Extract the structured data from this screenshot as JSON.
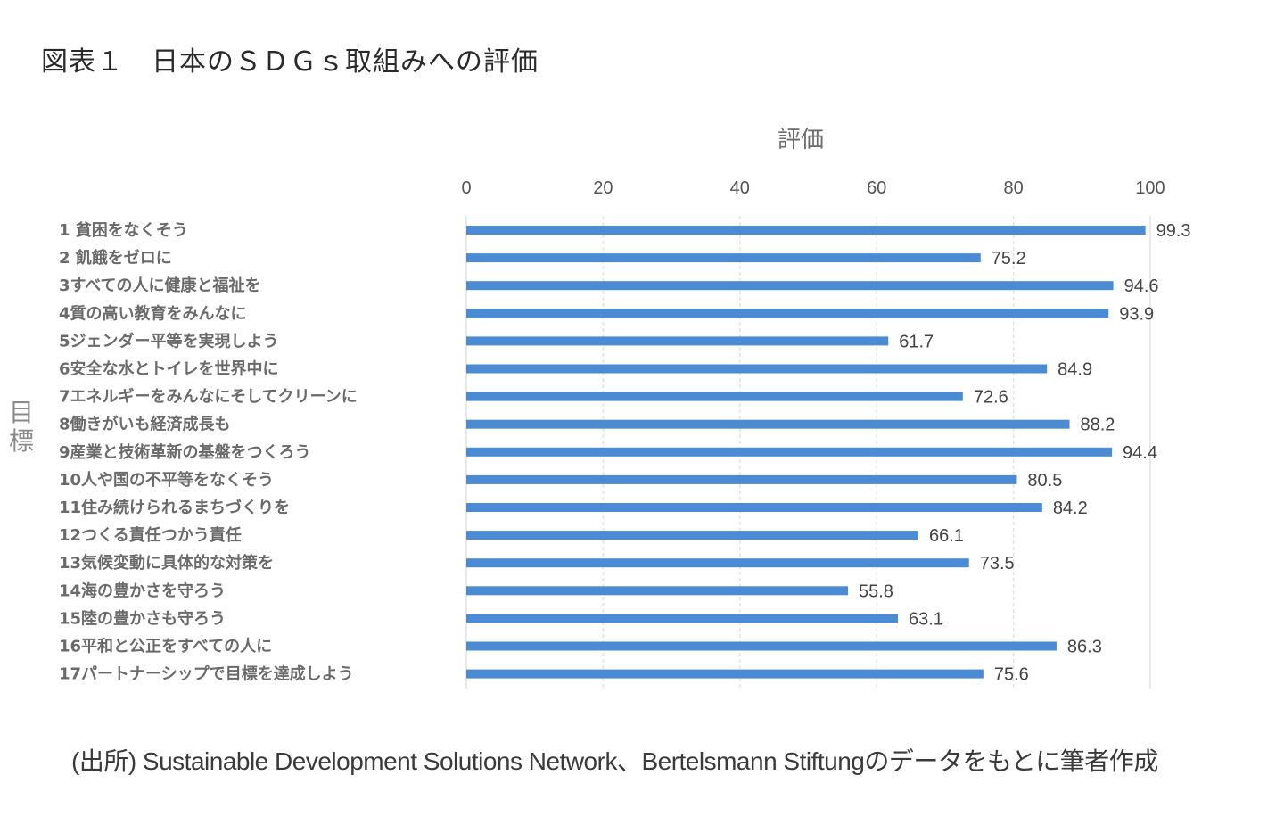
{
  "title": "図表１　日本のＳＤＧｓ取組みへの評価",
  "source": "(出所) Sustainable Development Solutions Network、Bertelsmann Stiftungのデータをもとに筆者作成",
  "chart_data": {
    "type": "bar",
    "orientation": "horizontal",
    "title": "図表１　日本のＳＤＧｓ取組みへの評価",
    "xlabel": "評価",
    "ylabel": "目標",
    "xlim": [
      0,
      100
    ],
    "xticks": [
      "0",
      "20",
      "40",
      "60",
      "80",
      "100"
    ],
    "x_axis_position": "top",
    "grid": true,
    "bar_color": "#4a8bd3",
    "categories": [
      "1 貧困をなくそう",
      "2 飢餓をゼロに",
      "3すべての人に健康と福祉を",
      "4質の高い教育をみんなに",
      "5ジェンダー平等を実現しよう",
      "6安全な水とトイレを世界中に",
      "7エネルギーをみんなにそしてクリーンに",
      "8働きがいも経済成長も",
      "9産業と技術革新の基盤をつくろう",
      "10人や国の不平等をなくそう",
      "11住み続けられるまちづくりを",
      "12つくる責任つかう責任",
      "13気候変動に具体的な対策を",
      "14海の豊かさを守ろう",
      "15陸の豊かさも守ろう",
      "16平和と公正をすべての人に",
      "17パートナーシップで目標を達成しよう"
    ],
    "values": [
      99.3,
      75.2,
      94.6,
      93.9,
      61.7,
      84.9,
      72.6,
      88.2,
      94.4,
      80.5,
      84.2,
      66.1,
      73.5,
      55.8,
      63.1,
      86.3,
      75.6
    ],
    "value_labels": [
      "99.3",
      "75.2",
      "94.6",
      "93.9",
      "61.7",
      "84.9",
      "72.6",
      "88.2",
      "94.4",
      "80.5",
      "84.2",
      "66.1",
      "73.5",
      "55.8",
      "63.1",
      "86.3",
      "75.6"
    ]
  }
}
